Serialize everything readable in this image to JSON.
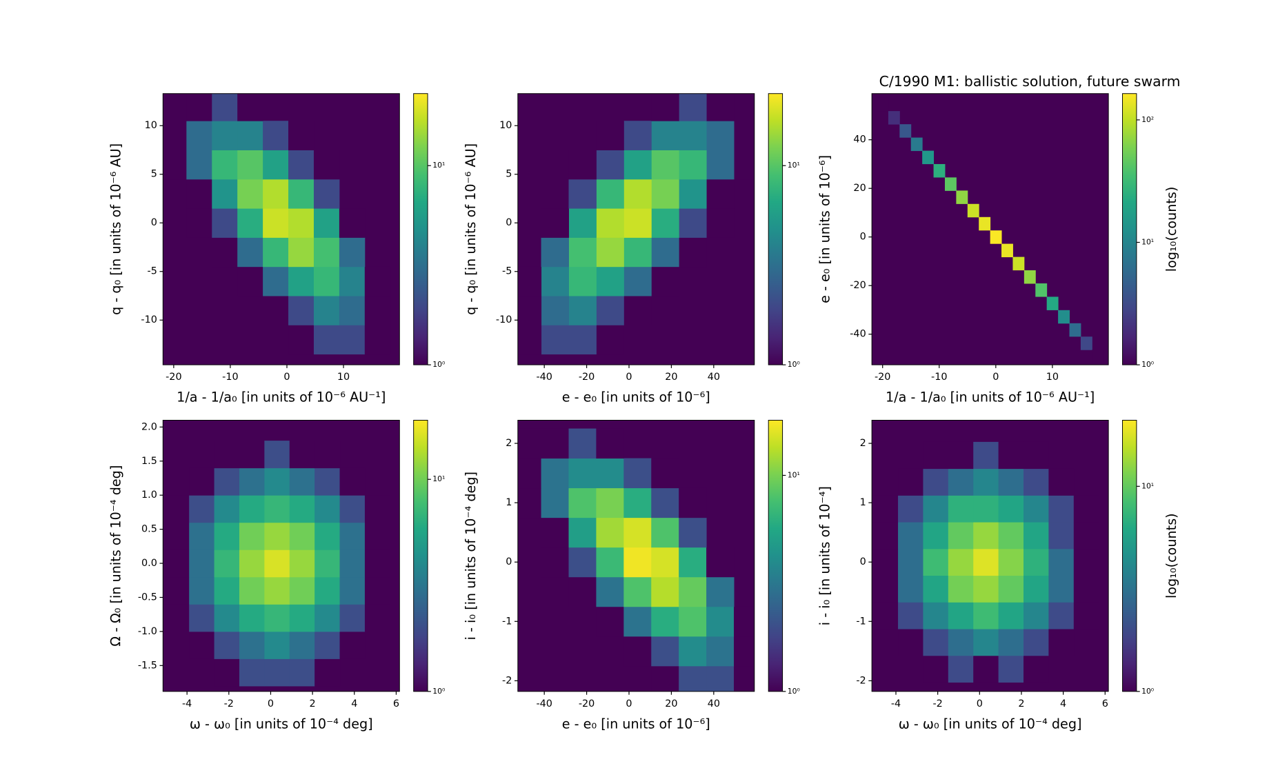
{
  "chart_data": [
    {
      "type": "hexbin",
      "xlabel": "1/a - 1/a₀ [in units of 10⁻⁶ AU⁻¹]",
      "ylabel": "q - q₀ [in units of 10⁻⁶ AU]",
      "xlim": [
        -21.9,
        19.9
      ],
      "ylim": [
        -14.6,
        13.3
      ],
      "xticks": [
        -20,
        -10,
        0,
        10
      ],
      "yticks": [
        -10,
        -5,
        0,
        5,
        10
      ],
      "clim": [
        1,
        23
      ],
      "cticks": [
        {
          "value": 1,
          "label": "10⁰"
        },
        {
          "value": 10,
          "label": "10¹"
        }
      ],
      "x": [
        2.5,
        7,
        11.5,
        16,
        -2,
        2.5,
        7,
        11.5,
        16,
        -6.5,
        -2,
        2.5,
        7,
        11.5,
        16,
        -11,
        -6.5,
        -2,
        2.5,
        7,
        11.5,
        -15.5,
        -11,
        -6.5,
        -2,
        2.5,
        7,
        11.5,
        -15.5,
        -11,
        -6.5,
        -2,
        2.5,
        7,
        -20,
        -15.5,
        -11,
        -6.5,
        -2,
        2.5,
        7,
        -20,
        -15.5,
        -11,
        -6.5,
        -2,
        2.5,
        -20,
        -15.5,
        -11,
        -6.5
      ],
      "y": [
        -12,
        -12,
        -12,
        -12,
        -9,
        -9,
        -9,
        -9,
        -9,
        -6,
        -6,
        -6,
        -6,
        -6,
        -6,
        -3,
        -3,
        -3,
        -3,
        -3,
        -3,
        0,
        0,
        0,
        0,
        0,
        0,
        0,
        3,
        3,
        3,
        3,
        3,
        3,
        6,
        6,
        6,
        6,
        6,
        6,
        6,
        9,
        9,
        9,
        9,
        9,
        9,
        12,
        12,
        12,
        12
      ],
      "values": [
        1,
        2,
        2,
        1,
        1,
        2,
        4,
        3,
        1,
        1,
        3,
        6,
        8,
        4,
        1,
        1,
        3,
        8,
        14,
        9,
        3,
        1,
        2,
        7,
        18,
        16,
        6,
        1,
        1,
        5,
        12,
        16,
        8,
        2,
        1,
        3,
        8,
        10,
        6,
        2,
        1,
        1,
        3,
        4,
        4,
        2,
        1,
        1,
        1,
        2,
        1
      ]
    },
    {
      "type": "hexbin",
      "xlabel": "e - e₀ [in units of 10⁻⁶]",
      "ylabel": "q - q₀ [in units of 10⁻⁶ AU]",
      "xlim": [
        -52.5,
        59.2
      ],
      "ylim": [
        -14.6,
        13.3
      ],
      "xticks": [
        -40,
        -20,
        0,
        20,
        40
      ],
      "yticks": [
        -10,
        -5,
        0,
        5,
        10
      ],
      "clim": [
        1,
        23
      ],
      "cticks": [
        {
          "value": 1,
          "label": "10⁰"
        },
        {
          "value": 10,
          "label": "10¹"
        }
      ],
      "x": [
        -9,
        -22,
        -35,
        -48,
        4,
        -9,
        -22,
        -35,
        -48,
        17,
        4,
        -9,
        -22,
        -35,
        -48,
        30,
        17,
        4,
        -9,
        -22,
        -35,
        43,
        30,
        17,
        4,
        -9,
        -22,
        -35,
        43,
        30,
        17,
        4,
        -9,
        -22,
        56,
        43,
        30,
        17,
        4,
        -9,
        -22,
        56,
        43,
        30,
        17,
        4,
        -9,
        56,
        43,
        30,
        17
      ],
      "y": [
        -12,
        -12,
        -12,
        -12,
        -9,
        -9,
        -9,
        -9,
        -9,
        -6,
        -6,
        -6,
        -6,
        -6,
        -6,
        -3,
        -3,
        -3,
        -3,
        -3,
        -3,
        0,
        0,
        0,
        0,
        0,
        0,
        0,
        3,
        3,
        3,
        3,
        3,
        3,
        6,
        6,
        6,
        6,
        6,
        6,
        6,
        9,
        9,
        9,
        9,
        9,
        9,
        12,
        12,
        12,
        12
      ],
      "values": [
        1,
        2,
        2,
        1,
        1,
        2,
        4,
        3,
        1,
        1,
        3,
        6,
        8,
        4,
        1,
        1,
        3,
        8,
        14,
        9,
        3,
        1,
        2,
        7,
        18,
        16,
        6,
        1,
        1,
        5,
        12,
        16,
        8,
        2,
        1,
        3,
        8,
        10,
        6,
        2,
        1,
        1,
        3,
        4,
        4,
        2,
        1,
        1,
        1,
        2,
        1
      ]
    },
    {
      "type": "hexbin",
      "title": "C/1990 M1:  ballistic solution, future swarm",
      "xlabel": "1/a - 1/a₀ [in units of 10⁻⁶ AU⁻¹]",
      "ylabel": "e - e₀ [in units of 10⁻⁶]",
      "clabel": "log₁₀(counts)",
      "xlim": [
        -21.9,
        19.9
      ],
      "ylim": [
        -52.6,
        59
      ],
      "xticks": [
        -20,
        -10,
        0,
        10
      ],
      "yticks": [
        -40,
        -20,
        0,
        20,
        40
      ],
      "clim": [
        1,
        164
      ],
      "cticks": [
        {
          "value": 1,
          "label": "10⁰"
        },
        {
          "value": 10,
          "label": "10¹"
        },
        {
          "value": 100,
          "label": "10²"
        }
      ],
      "x": [
        -20,
        -18,
        -16,
        -14,
        -12,
        -10,
        -8,
        -6,
        -4,
        -2,
        0,
        2,
        4,
        6,
        8,
        10,
        12,
        14,
        16,
        18
      ],
      "y": [
        54.6,
        49.1,
        43.7,
        38.2,
        32.8,
        27.3,
        21.8,
        16.4,
        10.9,
        5.5,
        0,
        -5.5,
        -10.9,
        -16.4,
        -21.8,
        -27.3,
        -32.8,
        -38.2,
        -43.7,
        -49.1
      ],
      "values": [
        1,
        2,
        4,
        8,
        15,
        25,
        45,
        70,
        110,
        140,
        160,
        140,
        110,
        70,
        40,
        22,
        12,
        6,
        3,
        1
      ]
    },
    {
      "type": "hexbin",
      "xlabel": "ω - ω₀ [in units of 10⁻⁴ deg]",
      "ylabel": "Ω - Ω₀ [in units of 10⁻⁴ deg]",
      "xlim": [
        -5.15,
        6.16
      ],
      "ylim": [
        -1.88,
        2.1
      ],
      "xticks": [
        -4,
        -2,
        0,
        2,
        4,
        6
      ],
      "yticks": [
        {
          "value": -1.5,
          "label": "-1.5"
        },
        {
          "value": -1,
          "label": "-1.0"
        },
        {
          "value": -0.5,
          "label": "-0.5"
        },
        {
          "value": 0,
          "label": "0.0"
        },
        {
          "value": 0.5,
          "label": "0.5"
        },
        {
          "value": 1,
          "label": "1.0"
        },
        {
          "value": 1.5,
          "label": "1.5"
        },
        {
          "value": 2,
          "label": "2.0"
        }
      ],
      "clim": [
        1,
        19
      ],
      "cticks": [
        {
          "value": 1,
          "label": "10⁰"
        },
        {
          "value": 10,
          "label": "10¹"
        }
      ],
      "x": [
        -2.1,
        -0.9,
        0.3,
        1.5,
        2.7,
        -3.3,
        -2.1,
        -0.9,
        0.3,
        1.5,
        2.7,
        3.9,
        -4.5,
        -3.3,
        -2.1,
        -0.9,
        0.3,
        1.5,
        2.7,
        3.9,
        5.1,
        -4.5,
        -3.3,
        -2.1,
        -0.9,
        0.3,
        1.5,
        2.7,
        3.9,
        5.1,
        -4.5,
        -3.3,
        -2.1,
        -0.9,
        0.3,
        1.5,
        2.7,
        3.9,
        5.1,
        -4.5,
        -3.3,
        -2.1,
        -0.9,
        0.3,
        1.5,
        2.7,
        3.9,
        5.1,
        -4.5,
        -3.3,
        -2.1,
        -0.9,
        0.3,
        1.5,
        2.7,
        3.9,
        5.1,
        -3.3,
        -2.1,
        -0.9,
        0.3,
        1.5,
        2.7,
        3.9,
        -2.1,
        -0.9,
        0.3,
        1.5,
        2.7
      ],
      "y": [
        -1.6,
        -1.6,
        -1.6,
        -1.6,
        -1.6,
        -1.2,
        -1.2,
        -1.2,
        -1.2,
        -1.2,
        -1.2,
        -1.2,
        -0.8,
        -0.8,
        -0.8,
        -0.8,
        -0.8,
        -0.8,
        -0.8,
        -0.8,
        -0.8,
        -0.4,
        -0.4,
        -0.4,
        -0.4,
        -0.4,
        -0.4,
        -0.4,
        -0.4,
        -0.4,
        0,
        0,
        0,
        0,
        0,
        0,
        0,
        0,
        0,
        0.4,
        0.4,
        0.4,
        0.4,
        0.4,
        0.4,
        0.4,
        0.4,
        0.4,
        0.8,
        0.8,
        0.8,
        0.8,
        0.8,
        0.8,
        0.8,
        0.8,
        0.8,
        1.2,
        1.2,
        1.2,
        1.2,
        1.2,
        1.2,
        1.2,
        1.6,
        1.6,
        1.6,
        1.6,
        1.6
      ],
      "values": [
        1,
        2,
        2,
        2,
        1,
        1,
        2,
        3,
        4,
        3,
        2,
        1,
        1,
        2,
        4,
        6,
        7,
        6,
        4,
        2,
        1,
        1,
        3,
        6,
        10,
        12,
        10,
        6,
        3,
        1,
        1,
        3,
        7,
        12,
        16,
        12,
        7,
        3,
        1,
        1,
        3,
        6,
        10,
        12,
        10,
        6,
        3,
        1,
        1,
        2,
        4,
        6,
        7,
        6,
        4,
        2,
        1,
        1,
        2,
        3,
        4,
        3,
        2,
        1,
        1,
        1,
        2,
        1,
        1
      ]
    },
    {
      "type": "hexbin",
      "xlabel": "e - e₀ [in units of 10⁻⁶]",
      "ylabel": "i - i₀ [in units of 10⁻⁴ deg]",
      "xlim": [
        -52.5,
        59.2
      ],
      "ylim": [
        -2.18,
        2.39
      ],
      "xticks": [
        -40,
        -20,
        0,
        20,
        40
      ],
      "yticks": [
        -2,
        -1,
        0,
        1,
        2
      ],
      "clim": [
        1,
        18
      ],
      "cticks": [
        {
          "value": 1,
          "label": "10⁰"
        },
        {
          "value": 10,
          "label": "10¹"
        }
      ],
      "x": [
        17,
        30,
        43,
        56,
        4,
        17,
        30,
        43,
        56,
        -9,
        4,
        17,
        30,
        43,
        56,
        -22,
        -9,
        4,
        17,
        30,
        43,
        -35,
        -22,
        -9,
        4,
        17,
        30,
        43,
        -35,
        -22,
        -9,
        4,
        17,
        30,
        -48,
        -35,
        -22,
        -9,
        4,
        17,
        30,
        -48,
        -35,
        -22,
        -9,
        4,
        17,
        -48,
        -35,
        -22,
        -9
      ],
      "y": [
        -2,
        -2,
        -2,
        -2,
        -1.5,
        -1.5,
        -1.5,
        -1.5,
        -1.5,
        -1,
        -1,
        -1,
        -1,
        -1,
        -1,
        -0.5,
        -0.5,
        -0.5,
        -0.5,
        -0.5,
        -0.5,
        0,
        0,
        0,
        0,
        0,
        0,
        0,
        0.5,
        0.5,
        0.5,
        0.5,
        0.5,
        0.5,
        1,
        1,
        1,
        1,
        1,
        1,
        1,
        1.5,
        1.5,
        1.5,
        1.5,
        1.5,
        1.5,
        2,
        2,
        2,
        2
      ],
      "values": [
        1,
        2,
        2,
        1,
        1,
        2,
        4,
        3,
        1,
        1,
        3,
        6,
        8,
        4,
        1,
        1,
        3,
        8,
        13,
        9,
        3,
        1,
        2,
        7,
        17,
        15,
        6,
        1,
        1,
        5,
        12,
        15,
        8,
        2,
        1,
        3,
        8,
        10,
        6,
        2,
        1,
        1,
        3,
        4,
        4,
        2,
        1,
        1,
        1,
        2,
        1
      ]
    },
    {
      "type": "hexbin",
      "xlabel": "ω - ω₀ [in units of 10⁻⁴ deg]",
      "ylabel": "i - i₀ [in units of 10⁻⁴]",
      "clabel": "log₁₀(counts)",
      "xlim": [
        -5.15,
        6.16
      ],
      "ylim": [
        -2.18,
        2.39
      ],
      "xticks": [
        -4,
        -2,
        0,
        2,
        4,
        6
      ],
      "yticks": [
        -2,
        -1,
        0,
        1,
        2
      ],
      "clim": [
        1,
        21
      ],
      "cticks": [
        {
          "value": 1,
          "label": "10⁰"
        },
        {
          "value": 10,
          "label": "10¹"
        }
      ],
      "x": [
        -2.1,
        -0.9,
        0.3,
        1.5,
        2.7,
        -3.3,
        -2.1,
        -0.9,
        0.3,
        1.5,
        2.7,
        3.9,
        -4.5,
        -3.3,
        -2.1,
        -0.9,
        0.3,
        1.5,
        2.7,
        3.9,
        5.1,
        -4.5,
        -3.3,
        -2.1,
        -0.9,
        0.3,
        1.5,
        2.7,
        3.9,
        5.1,
        -4.5,
        -3.3,
        -2.1,
        -0.9,
        0.3,
        1.5,
        2.7,
        3.9,
        5.1,
        -4.5,
        -3.3,
        -2.1,
        -0.9,
        0.3,
        1.5,
        2.7,
        3.9,
        5.1,
        -4.5,
        -3.3,
        -2.1,
        -0.9,
        0.3,
        1.5,
        2.7,
        3.9,
        5.1,
        -3.3,
        -2.1,
        -0.9,
        0.3,
        1.5,
        2.7,
        3.9,
        -2.1,
        -0.9,
        0.3,
        1.5,
        2.7
      ],
      "y": [
        -1.8,
        -1.8,
        -1.8,
        -1.8,
        -1.8,
        -1.35,
        -1.35,
        -1.35,
        -1.35,
        -1.35,
        -1.35,
        -1.35,
        -0.9,
        -0.9,
        -0.9,
        -0.9,
        -0.9,
        -0.9,
        -0.9,
        -0.9,
        -0.9,
        -0.45,
        -0.45,
        -0.45,
        -0.45,
        -0.45,
        -0.45,
        -0.45,
        -0.45,
        -0.45,
        0,
        0,
        0,
        0,
        0,
        0,
        0,
        0,
        0,
        0.45,
        0.45,
        0.45,
        0.45,
        0.45,
        0.45,
        0.45,
        0.45,
        0.45,
        0.9,
        0.9,
        0.9,
        0.9,
        0.9,
        0.9,
        0.9,
        0.9,
        0.9,
        1.35,
        1.35,
        1.35,
        1.35,
        1.35,
        1.35,
        1.35,
        1.8,
        1.8,
        1.8,
        1.8,
        1.8
      ],
      "values": [
        1,
        2,
        1,
        2,
        1,
        1,
        2,
        3,
        4,
        3,
        2,
        1,
        1,
        2,
        4,
        6,
        8,
        6,
        4,
        2,
        1,
        1,
        3,
        6,
        11,
        13,
        10,
        6,
        3,
        1,
        1,
        3,
        8,
        13,
        18,
        12,
        7,
        3,
        1,
        1,
        3,
        6,
        10,
        13,
        10,
        6,
        2,
        1,
        1,
        2,
        4,
        7,
        7,
        6,
        4,
        2,
        1,
        1,
        2,
        3,
        4,
        3,
        2,
        1,
        1,
        1,
        2,
        1,
        1
      ]
    }
  ]
}
